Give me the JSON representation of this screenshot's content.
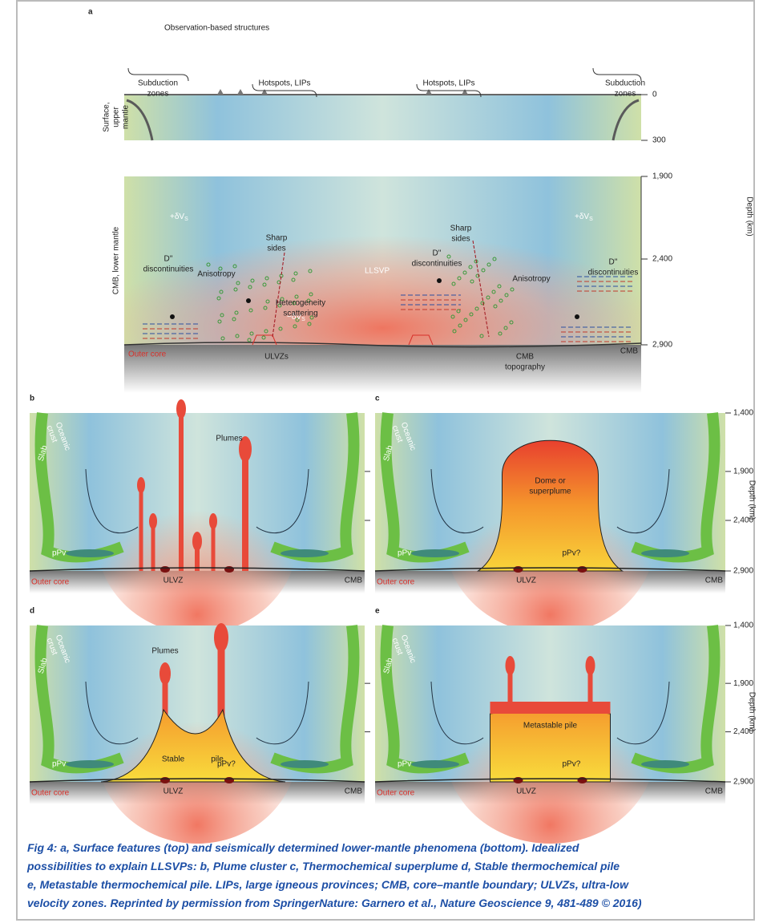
{
  "panel_a": {
    "label": "a",
    "title": "Observation-based structures",
    "subduction_left": [
      "Subduction",
      "zones"
    ],
    "hotspots_left": "Hotspots, LIPs",
    "hotspots_right": "Hotspots, LIPs",
    "subduction_right": [
      "Subduction",
      "zones"
    ],
    "axis_upper": [
      "Surface,",
      "upper",
      "mantle"
    ],
    "upper_ticks": [
      "0",
      "300"
    ],
    "axis_lower": "CMB, lower mantle",
    "lower_ticks": [
      "1,900",
      "2,400",
      "2,900"
    ],
    "depth_label": "Depth (km)",
    "fast_left": {
      "text": "+δV",
      "sub": "S"
    },
    "fast_right": {
      "text": "+δV",
      "sub": "S"
    },
    "slow": {
      "text": "−δV",
      "sub": "S"
    },
    "llsvp": "LLSVP",
    "d2_left": [
      "D''",
      "discontinuities"
    ],
    "d2_mid": [
      "D''",
      "discontinuities"
    ],
    "d2_right": [
      "D''",
      "discontinuities"
    ],
    "anisotropy_left": "Anisotropy",
    "anisotropy_right": "Anisotropy",
    "sharp_left": [
      "Sharp",
      "sides"
    ],
    "sharp_right": [
      "Sharp",
      "sides"
    ],
    "heterogeneity": [
      "Heterogeneity",
      "scattering"
    ],
    "outer_core": "Outer core",
    "ulvzs": "ULVZs",
    "cmb": "CMB",
    "cmb_topography": [
      "CMB",
      "topography"
    ]
  },
  "panels": [
    {
      "label": "b",
      "crust": [
        "Oceanic",
        "crust"
      ],
      "slab": "Slab",
      "ppv": "pPv",
      "main": "Plumes",
      "ulvz": "ULVZ",
      "outer_core": "Outer core",
      "cmb": "CMB"
    },
    {
      "label": "c",
      "crust": [
        "Oceanic",
        "crust"
      ],
      "slab": "Slab",
      "ppv": "pPv",
      "main": [
        "Dome or",
        "superplume"
      ],
      "ppv_q": "pPv?",
      "ulvz": "ULVZ",
      "outer_core": "Outer core",
      "cmb": "CMB",
      "ticks": [
        "1,400",
        "1,900",
        "2,400",
        "2,900"
      ],
      "depth_label": "Depth (km)"
    },
    {
      "label": "d",
      "crust": [
        "Oceanic",
        "crust"
      ],
      "slab": "Slab",
      "ppv": "pPv",
      "main": "Plumes",
      "pile": [
        "Stable",
        "pile"
      ],
      "ppv_q": "pPv?",
      "ulvz": "ULVZ",
      "outer_core": "Outer core",
      "cmb": "CMB"
    },
    {
      "label": "e",
      "crust": [
        "Oceanic",
        "crust"
      ],
      "slab": "Slab",
      "ppv": "pPv",
      "main": "Metastable pile",
      "ppv_q": "pPv?",
      "ulvz": "ULVZ",
      "outer_core": "Outer core",
      "cmb": "CMB",
      "ticks": [
        "1,400",
        "1,900",
        "2,400",
        "2,900"
      ],
      "depth_label": "Depth (km)"
    }
  ],
  "caption": [
    "Fig 4: a, Surface features (top) and seismically determined lower-mantle phenomena (bottom). Idealized",
    "possibilities to explain LLSVPs: b, Plume cluster c, Thermochemical superplume d, Stable thermochemical pile",
    "e, Metastable thermochemical pile. LIPs, large igneous provinces; CMB, core–mantle boundary; ULVZs, ultra-low",
    "velocity zones. Reprinted by permission from SpringerNature: Garnero et al., Nature Geoscience 9, 481-489 © 2016)"
  ]
}
